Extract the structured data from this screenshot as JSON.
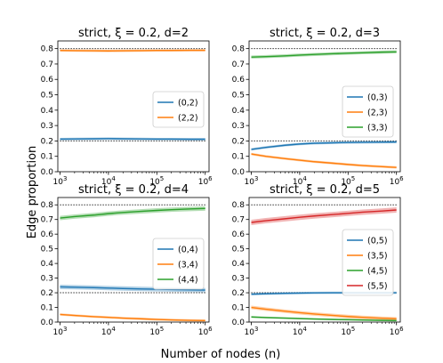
{
  "figure": {
    "ylabel": "Edge proportion",
    "xlabel": "Number of nodes (n)"
  },
  "colors": {
    "blue": "#1f77b4",
    "orange": "#ff7f0e",
    "green": "#2ca02c",
    "red": "#d62728",
    "reference": "#000000"
  },
  "chart_data": [
    {
      "type": "line",
      "title": "strict, ξ = 0.2, d=2",
      "x": [
        1000,
        2000,
        5000,
        10000,
        20000,
        50000,
        100000,
        200000,
        500000,
        1000000
      ],
      "x_ticks": [
        "10^3",
        "10^4",
        "10^5",
        "10^6"
      ],
      "xscale": "log",
      "ylim": [
        0,
        0.85
      ],
      "y_ticks": [
        "0.0",
        "0.1",
        "0.2",
        "0.3",
        "0.4",
        "0.5",
        "0.6",
        "0.7",
        "0.8"
      ],
      "legend_position": "center-right",
      "reference_lines": [
        0.8,
        0.2
      ],
      "series": [
        {
          "name": "(0,2)",
          "color": "#1f77b4",
          "values": [
            0.212,
            0.213,
            0.214,
            0.215,
            0.214,
            0.213,
            0.212,
            0.212,
            0.211,
            0.211
          ],
          "band": 0.008
        },
        {
          "name": "(2,2)",
          "color": "#ff7f0e",
          "values": [
            0.788,
            0.787,
            0.786,
            0.785,
            0.786,
            0.787,
            0.788,
            0.788,
            0.789,
            0.789
          ],
          "band": 0.008
        }
      ]
    },
    {
      "type": "line",
      "title": "strict, ξ = 0.2, d=3",
      "x": [
        1000,
        2000,
        5000,
        10000,
        20000,
        50000,
        100000,
        200000,
        500000,
        1000000
      ],
      "x_ticks": [
        "10^3",
        "10^4",
        "10^5",
        "10^6"
      ],
      "xscale": "log",
      "ylim": [
        0,
        0.85
      ],
      "y_ticks": [
        "0.0",
        "0.1",
        "0.2",
        "0.3",
        "0.4",
        "0.5",
        "0.6",
        "0.7",
        "0.8"
      ],
      "legend_position": "center-right",
      "reference_lines": [
        0.8,
        0.2
      ],
      "series": [
        {
          "name": "(0,3)",
          "color": "#1f77b4",
          "values": [
            0.145,
            0.158,
            0.172,
            0.18,
            0.185,
            0.188,
            0.19,
            0.191,
            0.192,
            0.193
          ],
          "band": 0.008
        },
        {
          "name": "(2,3)",
          "color": "#ff7f0e",
          "values": [
            0.115,
            0.1,
            0.085,
            0.075,
            0.065,
            0.055,
            0.047,
            0.04,
            0.033,
            0.028
          ],
          "band": 0.008
        },
        {
          "name": "(3,3)",
          "color": "#2ca02c",
          "values": [
            0.745,
            0.748,
            0.753,
            0.758,
            0.762,
            0.767,
            0.77,
            0.773,
            0.777,
            0.779
          ],
          "band": 0.01
        }
      ]
    },
    {
      "type": "line",
      "title": "strict, ξ = 0.2, d=4",
      "x": [
        1000,
        2000,
        5000,
        10000,
        20000,
        50000,
        100000,
        200000,
        500000,
        1000000
      ],
      "x_ticks": [
        "10^3",
        "10^4",
        "10^5",
        "10^6"
      ],
      "xscale": "log",
      "ylim": [
        0,
        0.85
      ],
      "y_ticks": [
        "0.0",
        "0.1",
        "0.2",
        "0.3",
        "0.4",
        "0.5",
        "0.6",
        "0.7",
        "0.8"
      ],
      "legend_position": "center-right",
      "reference_lines": [
        0.8,
        0.2
      ],
      "series": [
        {
          "name": "(0,4)",
          "color": "#1f77b4",
          "values": [
            0.24,
            0.238,
            0.235,
            0.232,
            0.229,
            0.226,
            0.224,
            0.222,
            0.22,
            0.218
          ],
          "band": 0.015
        },
        {
          "name": "(3,4)",
          "color": "#ff7f0e",
          "values": [
            0.052,
            0.045,
            0.037,
            0.032,
            0.027,
            0.022,
            0.018,
            0.015,
            0.012,
            0.01
          ],
          "band": 0.008
        },
        {
          "name": "(4,4)",
          "color": "#2ca02c",
          "values": [
            0.71,
            0.72,
            0.73,
            0.74,
            0.748,
            0.756,
            0.762,
            0.767,
            0.772,
            0.775
          ],
          "band": 0.015
        }
      ]
    },
    {
      "type": "line",
      "title": "strict, ξ = 0.2, d=5",
      "x": [
        1000,
        2000,
        5000,
        10000,
        20000,
        50000,
        100000,
        200000,
        500000,
        1000000
      ],
      "x_ticks": [
        "10^3",
        "10^4",
        "10^5",
        "10^6"
      ],
      "xscale": "log",
      "ylim": [
        0,
        0.85
      ],
      "y_ticks": [
        "0.0",
        "0.1",
        "0.2",
        "0.3",
        "0.4",
        "0.5",
        "0.6",
        "0.7",
        "0.8"
      ],
      "legend_position": "center-right",
      "reference_lines": [
        0.8,
        0.2
      ],
      "series": [
        {
          "name": "(0,5)",
          "color": "#1f77b4",
          "values": [
            0.19,
            0.193,
            0.196,
            0.198,
            0.199,
            0.2,
            0.2,
            0.2,
            0.2,
            0.2
          ],
          "band": 0.008
        },
        {
          "name": "(3,5)",
          "color": "#ff7f0e",
          "values": [
            0.1,
            0.088,
            0.074,
            0.064,
            0.055,
            0.045,
            0.038,
            0.032,
            0.026,
            0.022
          ],
          "band": 0.012
        },
        {
          "name": "(4,5)",
          "color": "#2ca02c",
          "values": [
            0.035,
            0.031,
            0.027,
            0.024,
            0.021,
            0.018,
            0.016,
            0.014,
            0.012,
            0.01
          ],
          "band": 0.006
        },
        {
          "name": "(5,5)",
          "color": "#d62728",
          "values": [
            0.68,
            0.692,
            0.705,
            0.715,
            0.724,
            0.734,
            0.742,
            0.75,
            0.758,
            0.765
          ],
          "band": 0.018
        }
      ]
    }
  ]
}
